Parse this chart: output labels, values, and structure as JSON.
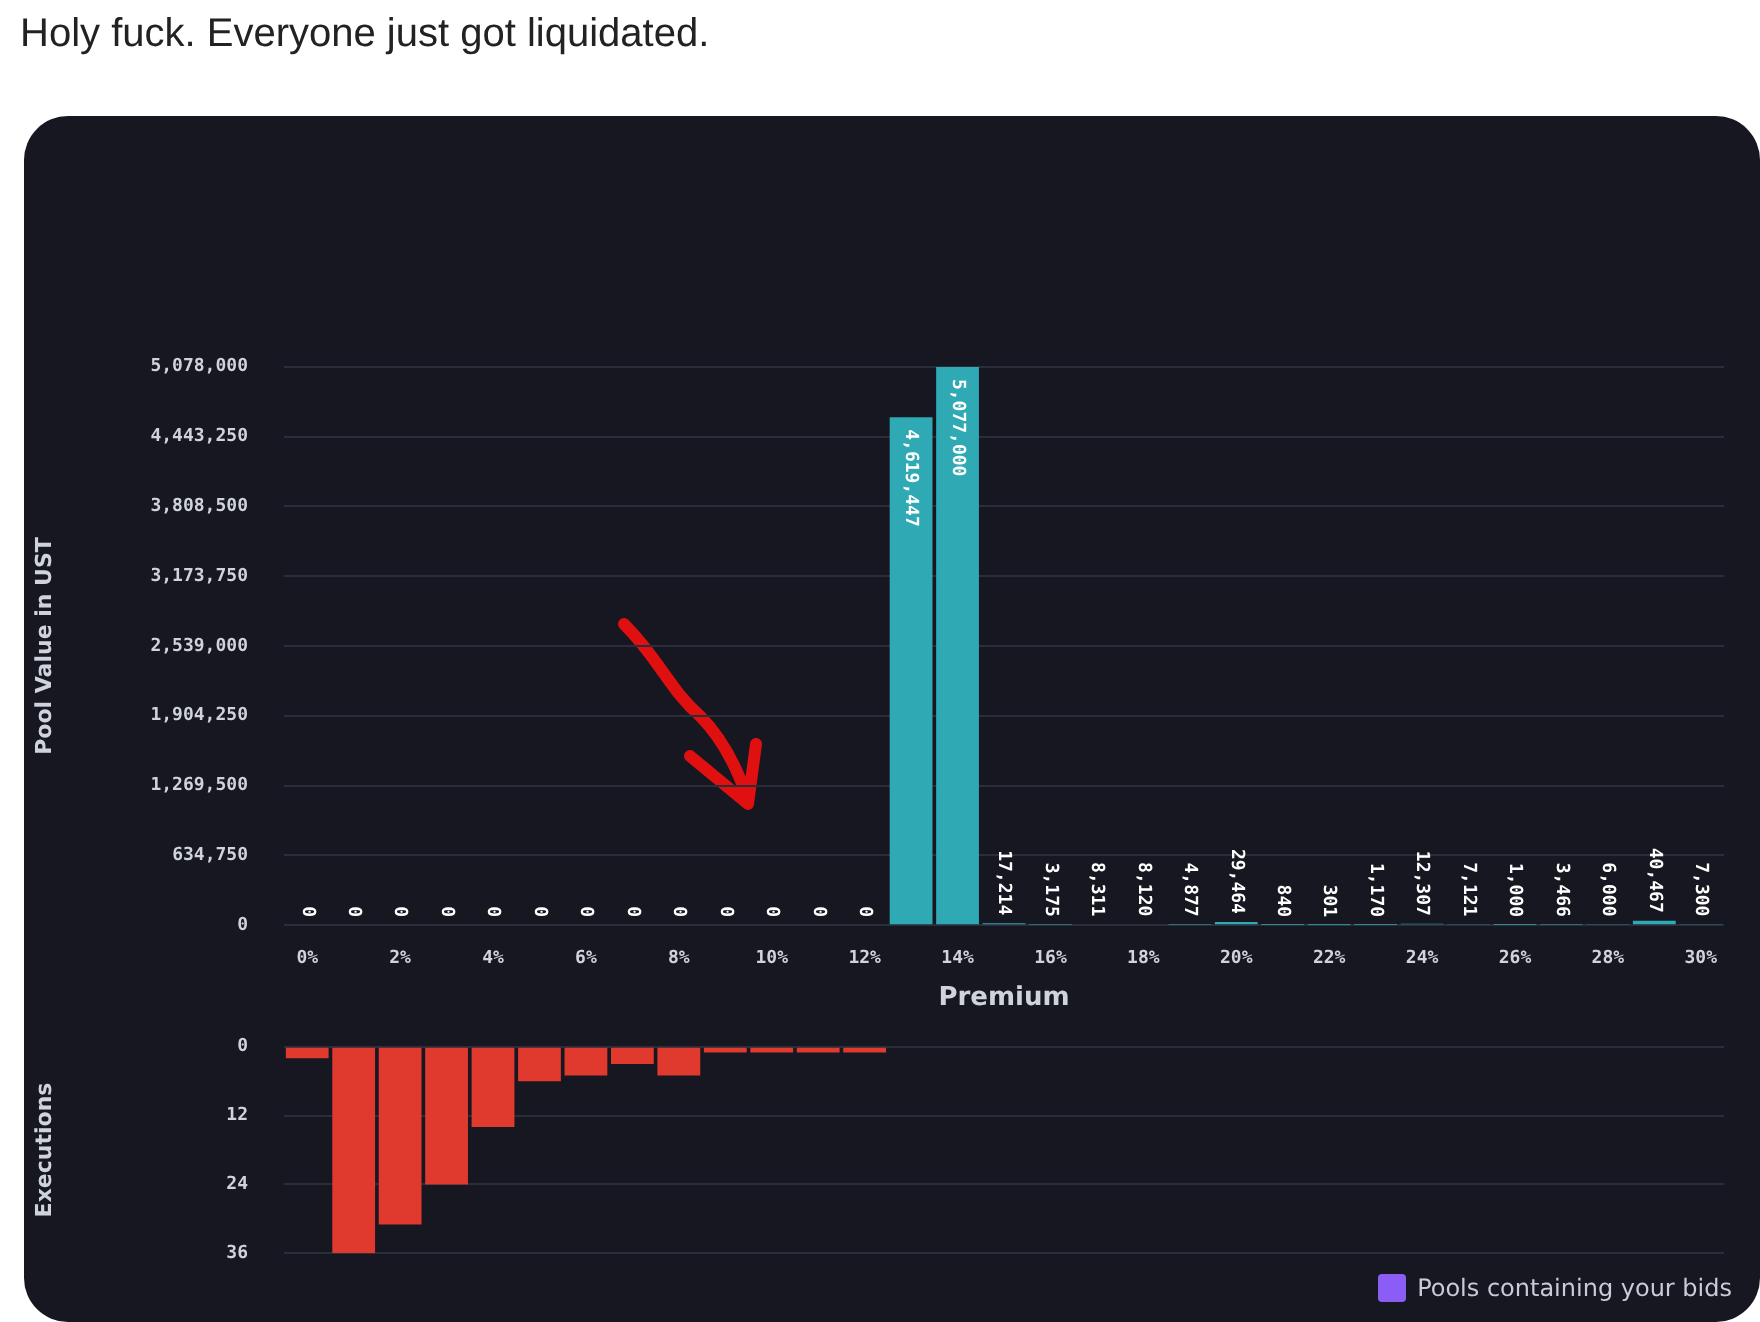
{
  "chart_data": [
    {
      "type": "bar",
      "title": "Holy fuck.  Everyone just got liquidated.",
      "xlabel": "Premium",
      "ylabel": "Pool Value in UST",
      "categories": [
        "0%",
        null,
        "2%",
        null,
        "4%",
        null,
        "6%",
        null,
        "8%",
        null,
        "10%",
        null,
        "12%",
        null,
        "14%",
        null,
        "16%",
        null,
        "18%",
        null,
        "20%",
        null,
        "22%",
        null,
        "24%",
        null,
        "26%",
        null,
        "28%",
        null,
        "30%"
      ],
      "values": [
        0,
        0,
        0,
        0,
        0,
        0,
        0,
        0,
        0,
        0,
        0,
        0,
        0,
        4619447,
        5077000,
        17214,
        3175,
        8311,
        8120,
        4877,
        29464,
        840,
        301,
        1170,
        12307,
        7121,
        1000,
        3466,
        6000,
        40467,
        7300
      ],
      "value_labels": [
        "0",
        "0",
        "0",
        "0",
        "0",
        "0",
        "0",
        "0",
        "0",
        "0",
        "0",
        "0",
        "0",
        "4,619,447",
        "5,077,000",
        "17,214",
        "3,175",
        "8,311",
        "8,120",
        "4,877",
        "29,464",
        "840",
        "301",
        "1,170",
        "12,307",
        "7,121",
        "1,000",
        "3,466",
        "6,000",
        "40,467",
        "7,300"
      ],
      "color": "#2fa9b4",
      "ylim": [
        0,
        5078000
      ],
      "yticks": [
        0,
        {
          "value": 634750,
          "label": "634,750"
        },
        {
          "value": 1269500,
          "label": "1,269,500"
        },
        {
          "value": 1904250,
          "label": "1,904,250"
        },
        {
          "value": 2539000,
          "label": "2,539,000"
        },
        {
          "value": 3173750,
          "label": "3,173,750"
        },
        {
          "value": 3808500,
          "label": "3,808,500"
        },
        {
          "value": 4443250,
          "label": "4,443,250"
        },
        {
          "value": 5078000,
          "label": "5,078,000"
        }
      ],
      "grid": "y"
    },
    {
      "type": "bar",
      "ylabel": "Executions",
      "annotations": [
        "Pools containing your bids"
      ],
      "categories": [
        null,
        null,
        null,
        null,
        null,
        null,
        null,
        null,
        null,
        null,
        null,
        null,
        null,
        null,
        null,
        null,
        null,
        null,
        null,
        null,
        null,
        null,
        null,
        null,
        null,
        null,
        null,
        null,
        null,
        null,
        null
      ],
      "values": [
        2,
        36,
        31,
        24,
        14,
        6,
        5,
        3,
        5,
        1,
        1,
        1,
        1,
        0,
        0,
        0,
        0,
        0,
        0,
        0,
        0,
        0,
        0,
        0,
        0,
        0,
        0,
        0,
        0,
        0,
        0
      ],
      "color": "#e0392e",
      "ylim": [
        36,
        0
      ],
      "yticks": [
        0,
        12,
        24,
        36
      ],
      "grid": "y",
      "tick_labels": "y"
    }
  ]
}
